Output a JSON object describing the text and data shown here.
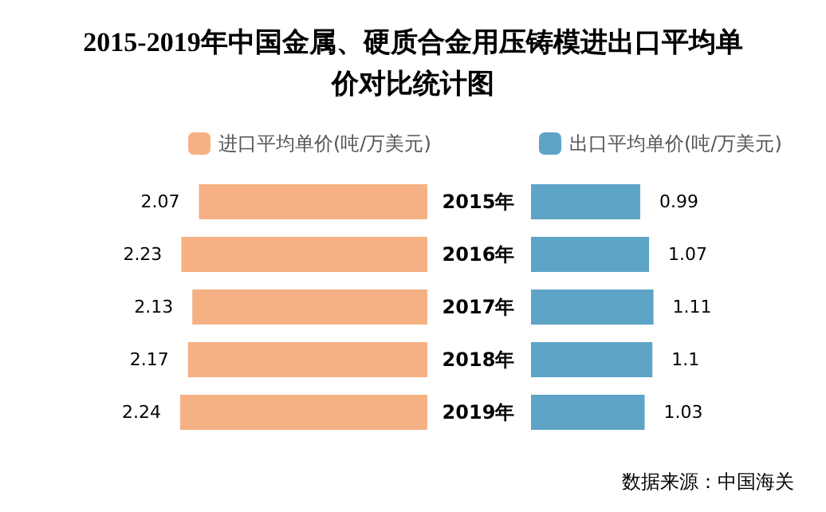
{
  "chart_data": [
    {
      "type": "bar",
      "orientation": "horizontal",
      "title": "2015-2019年中国金属、硬质合金用压铸模进出口平均单价对比统计图",
      "categories": [
        "2015年",
        "2016年",
        "2017年",
        "2018年",
        "2019年"
      ],
      "series": [
        {
          "name": "进口平均单价(吨/万美元)",
          "color": "#f5b183",
          "values": [
            2.07,
            2.23,
            2.13,
            2.17,
            2.24
          ]
        }
      ],
      "xlim": [
        2.24,
        0
      ],
      "tick_labels": "y",
      "data_labels": true,
      "legend": "top"
    },
    {
      "type": "bar",
      "orientation": "horizontal",
      "categories": [
        null,
        null,
        null,
        null,
        null
      ],
      "series": [
        {
          "name": "出口平均单价(吨/万美元)",
          "color": "#5ea4c6",
          "values": [
            0.99,
            1.07,
            1.11,
            1.1,
            1.03
          ]
        }
      ],
      "tick_labels": false,
      "data_labels": true,
      "legend": "top",
      "annotations": [
        "数据来源：中国海关"
      ]
    }
  ]
}
